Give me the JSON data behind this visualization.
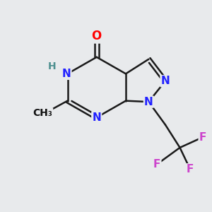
{
  "background_color": "#e8eaec",
  "bond_color": "#1a1a1a",
  "nitrogen_color": "#2121ff",
  "oxygen_color": "#ff0000",
  "fluorine_color": "#cc44cc",
  "hydrogen_color": "#4e9090",
  "line_width": 1.8,
  "font_size": 11,
  "xlim": [
    0,
    10
  ],
  "ylim": [
    0,
    10
  ],
  "p_O": [
    4.55,
    8.35
  ],
  "p_C4": [
    4.55,
    7.35
  ],
  "p_NH": [
    3.15,
    6.55
  ],
  "p_CMe": [
    3.15,
    5.25
  ],
  "p_N3": [
    4.55,
    4.45
  ],
  "p_C8a": [
    5.95,
    5.25
  ],
  "p_C4a": [
    5.95,
    6.55
  ],
  "p_C3": [
    7.05,
    7.25
  ],
  "p_N2": [
    7.85,
    6.2
  ],
  "p_N1": [
    7.05,
    5.2
  ],
  "p_CH2": [
    7.85,
    4.1
  ],
  "p_Cq": [
    8.55,
    3.0
  ],
  "p_F1": [
    9.65,
    3.5
  ],
  "p_F2": [
    9.05,
    1.95
  ],
  "p_F3": [
    7.45,
    2.2
  ],
  "p_Me": [
    2.05,
    4.65
  ],
  "Me_label": "CH₃",
  "H_label": "H",
  "NH_label": "N",
  "N3_label": "N",
  "N2_label": "N",
  "N1_label": "N",
  "O_label": "O",
  "F_label": "F"
}
